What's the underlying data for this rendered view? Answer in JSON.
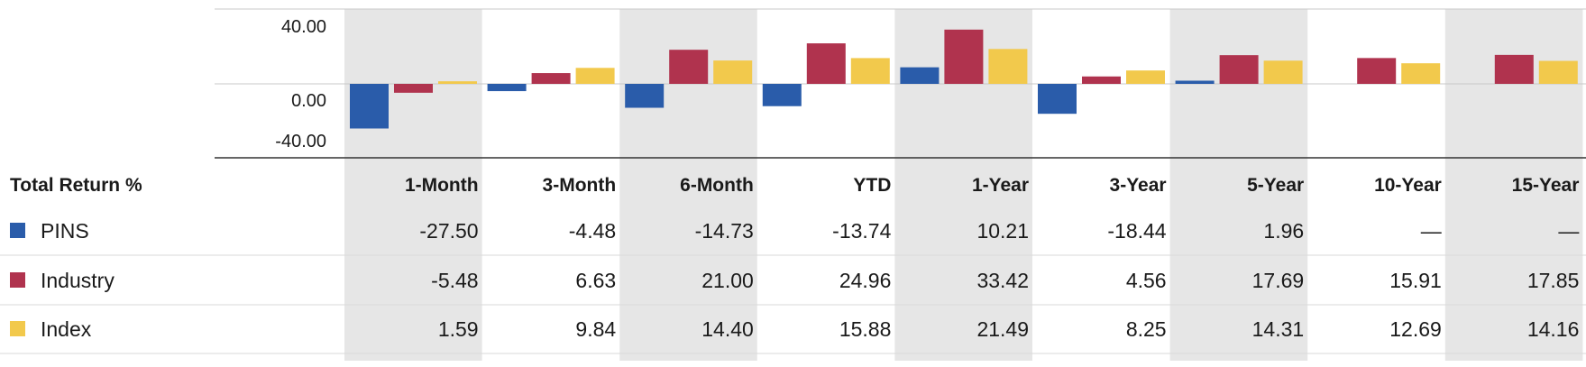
{
  "chart_data": {
    "type": "bar",
    "table_header": "Total Return %",
    "categories": [
      "1-Month",
      "3-Month",
      "6-Month",
      "YTD",
      "1-Year",
      "3-Year",
      "5-Year",
      "10-Year",
      "15-Year"
    ],
    "y_tick_labels": [
      "40.00",
      "0.00",
      "-40.00"
    ],
    "y_ticks": [
      40,
      0,
      -40
    ],
    "ylim": [
      -40,
      40
    ],
    "grid": true,
    "shaded_columns": [
      0,
      2,
      4,
      6,
      8
    ],
    "series": [
      {
        "name": "PINS",
        "color": "#2a5caa",
        "values": [
          -27.5,
          -4.48,
          -14.73,
          -13.74,
          10.21,
          -18.44,
          1.96,
          null,
          null
        ],
        "display": [
          "-27.50",
          "-4.48",
          "-14.73",
          "-13.74",
          "10.21",
          "-18.44",
          "1.96",
          "—",
          "—"
        ]
      },
      {
        "name": "Industry",
        "color": "#b0334e",
        "values": [
          -5.48,
          6.63,
          21.0,
          24.96,
          33.42,
          4.56,
          17.69,
          15.91,
          17.85
        ],
        "display": [
          "-5.48",
          "6.63",
          "21.00",
          "24.96",
          "33.42",
          "4.56",
          "17.69",
          "15.91",
          "17.85"
        ]
      },
      {
        "name": "Index",
        "color": "#f2c94c",
        "values": [
          1.59,
          9.84,
          14.4,
          15.88,
          21.49,
          8.25,
          14.31,
          12.69,
          14.16
        ],
        "display": [
          "1.59",
          "9.84",
          "14.40",
          "15.88",
          "21.49",
          "8.25",
          "14.31",
          "12.69",
          "14.16"
        ]
      }
    ]
  }
}
